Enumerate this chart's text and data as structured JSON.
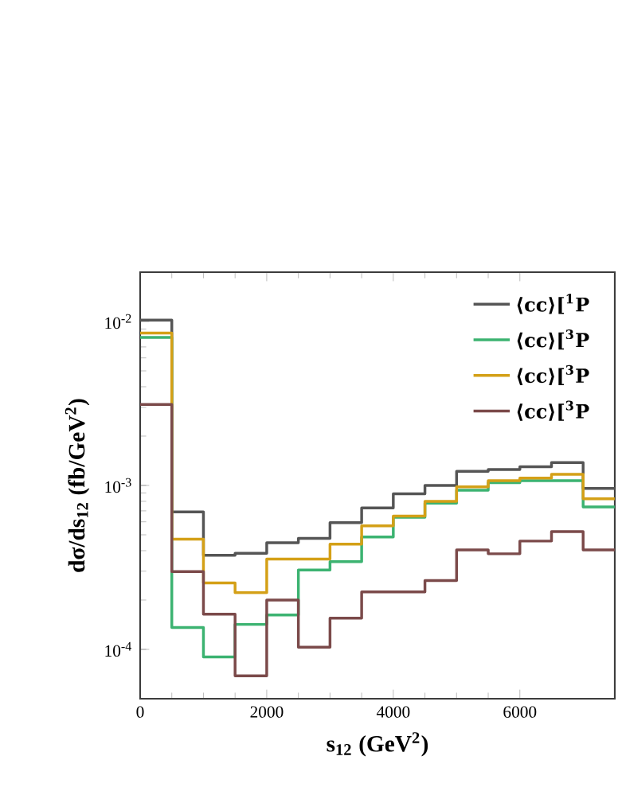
{
  "chart_data": {
    "type": "histogram",
    "xlabel": "s$_{12}$ (GeV$^{2}$)",
    "ylabel": "dσ/ds$_{12}$ (fb/GeV$^{2}$)",
    "bins": [
      0,
      500,
      1000,
      1500,
      2000,
      2500,
      3000,
      3500,
      4000,
      4500,
      5000,
      5500,
      6000,
      6500,
      7000,
      7500
    ],
    "series": [
      {
        "name": "⟨cc⟩[$^{1}$P",
        "color": "#555555",
        "values": [
          0.0102,
          0.00069,
          0.000375,
          0.000386,
          0.000447,
          0.000475,
          0.000593,
          0.00073,
          0.00089,
          0.001,
          0.00122,
          0.00125,
          0.0013,
          0.00138,
          0.00096
        ]
      },
      {
        "name": "⟨cc⟩[$^{3}$P",
        "color": "#3cb371",
        "values": [
          0.008,
          0.000136,
          9e-05,
          0.000142,
          0.000162,
          0.000305,
          0.000343,
          0.000485,
          0.00064,
          0.00078,
          0.000935,
          0.00104,
          0.00107,
          0.00107,
          0.00074
        ]
      },
      {
        "name": "⟨cc⟩[$^{3}$P",
        "color": "#d4a017",
        "values": [
          0.0085,
          0.00047,
          0.000254,
          0.000222,
          0.000356,
          0.000356,
          0.000438,
          0.000567,
          0.00065,
          0.0008,
          0.00098,
          0.00107,
          0.00111,
          0.00117,
          0.00083
        ]
      },
      {
        "name": "⟨cc⟩[$^{3}$P",
        "color": "#7b4a4a",
        "values": [
          0.00312,
          0.000298,
          0.000164,
          6.9e-05,
          0.0002,
          0.000103,
          0.000155,
          0.000224,
          0.000224,
          0.000263,
          0.000404,
          0.000383,
          0.000458,
          0.000523,
          0.000404
        ]
      }
    ],
    "xlim": [
      0,
      7500
    ],
    "ylim": [
      5e-05,
      0.02
    ],
    "xticks": [
      0,
      2000,
      4000,
      6000
    ],
    "yticks": [
      {
        "value": 0.0001,
        "label": "10$^{-4}$"
      },
      {
        "value": 0.001,
        "label": "10$^{-3}$"
      },
      {
        "value": 0.01,
        "label": "10$^{-2}$"
      }
    ],
    "log": "y",
    "legend": "top right"
  }
}
